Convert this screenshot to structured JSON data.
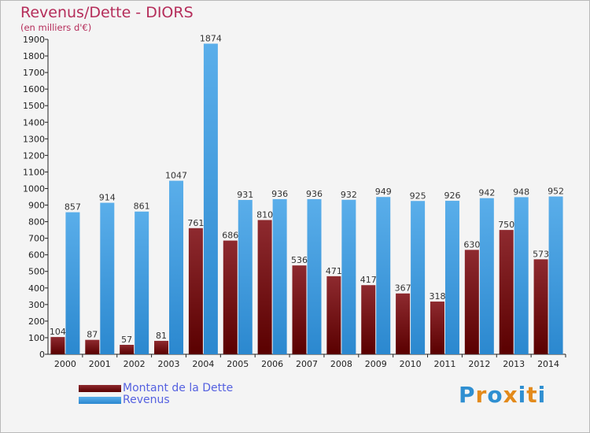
{
  "header": {
    "title": "Revenus/Dette - DIORS",
    "subtitle": "(en milliers d'€)"
  },
  "legend": {
    "items": [
      {
        "label": "Montant de la Dette",
        "color": "#6b0a0a"
      },
      {
        "label": "Revenus",
        "color": "#3d9ae0"
      }
    ]
  },
  "logo": {
    "text": "Proxiti",
    "letters": [
      "P",
      "r",
      "o",
      "x",
      "i",
      "t",
      "i"
    ],
    "colors": [
      "#2f8fd1",
      "#e38a1b",
      "#2f8fd1",
      "#e38a1b",
      "#2f8fd1",
      "#e38a1b",
      "#2f8fd1"
    ]
  },
  "colors": {
    "debt_top": "#8e2a2f",
    "debt_bottom": "#5a0000",
    "revenue_top": "#5aaeea",
    "revenue_bottom": "#2b88cf",
    "title": "#b52d5a"
  },
  "chart_data": {
    "type": "bar",
    "title": "Revenus/Dette - DIORS",
    "subtitle": "(en milliers d'€)",
    "categories": [
      "2000",
      "2001",
      "2002",
      "2003",
      "2004",
      "2005",
      "2006",
      "2007",
      "2008",
      "2009",
      "2010",
      "2011",
      "2012",
      "2013",
      "2014"
    ],
    "series": [
      {
        "name": "Montant de la Dette",
        "values": [
          104,
          87,
          57,
          81,
          761,
          686,
          810,
          536,
          471,
          417,
          367,
          318,
          630,
          750,
          573
        ]
      },
      {
        "name": "Revenus",
        "values": [
          857,
          914,
          861,
          1047,
          1874,
          931,
          936,
          936,
          932,
          949,
          925,
          926,
          942,
          948,
          952
        ]
      }
    ],
    "ylim": [
      0,
      1900
    ],
    "yticks": [
      0,
      100,
      200,
      300,
      400,
      500,
      600,
      700,
      800,
      900,
      1000,
      1100,
      1200,
      1300,
      1400,
      1500,
      1600,
      1700,
      1800,
      1900
    ],
    "grid": false,
    "legend_position": "bottom-left"
  }
}
